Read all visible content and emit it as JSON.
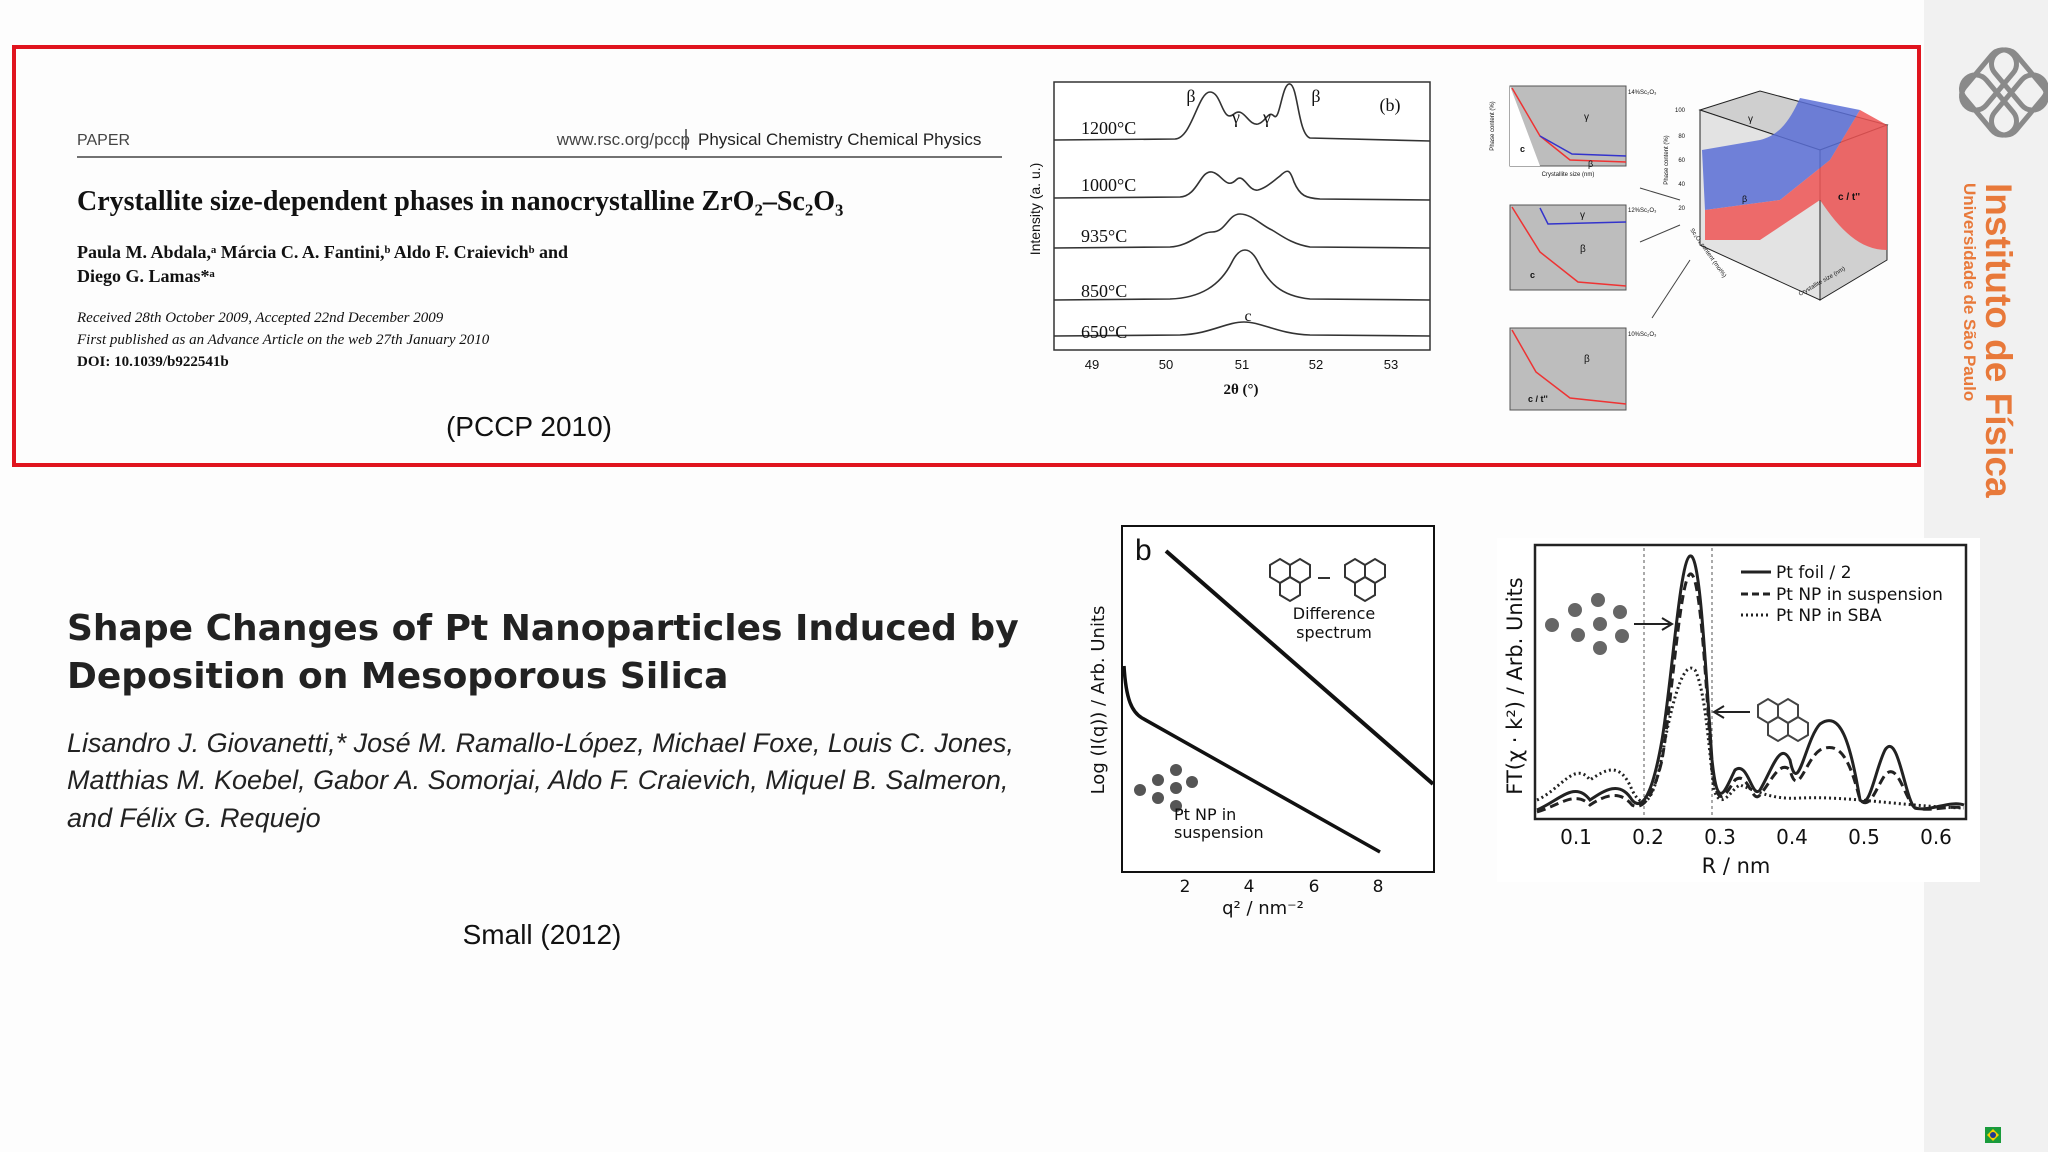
{
  "paper_1": {
    "section": "PAPER",
    "url": "www.rsc.org/pccp",
    "journal": "Physical Chemistry Chemical Physics",
    "title": "Crystallite size-dependent phases in nanocrystalline ZrO₂–Sc₂O₃",
    "authors": [
      "Paula M. Abdala,ᵃ Márcia C. A. Fantini,ᵇ Aldo F. Craievichᵇ and",
      "Diego G. Lamas*ᵃ"
    ],
    "history": [
      "Received 28th October 2009, Accepted 22nd December 2009",
      "First published as an Advance Article on the web 27th January 2010"
    ],
    "doi": "DOI: 10.1039/b922541b",
    "caption": "(PCCP 2010)"
  },
  "xrd_figure": {
    "panel": "(b)",
    "y_label": "Intensity (a. u.)",
    "x_label": "2θ (°)",
    "x_ticks": [
      49,
      50,
      51,
      52,
      53
    ],
    "temperatures": [
      "1200°C",
      "1000°C",
      "935°C",
      "850°C",
      "650°C"
    ],
    "peak_labels": [
      "β",
      "γ",
      "γ",
      "β",
      "c"
    ]
  },
  "phase_figure": {
    "panels": [
      {
        "composition": "14%Sc₂O₃",
        "phases": [
          "γ",
          "c",
          "β"
        ]
      },
      {
        "composition": "12%Sc₂O₃",
        "phases": [
          "γ",
          "β",
          "c"
        ]
      },
      {
        "composition": "10%Sc₂O₃",
        "phases": [
          "β",
          "c / t''"
        ]
      }
    ],
    "x_label": "Crystallite size (nm)",
    "y_label": "Phase content (%)",
    "surface_labels": [
      "γ",
      "β",
      "c / t''"
    ],
    "surface_axes": [
      "Phase content (%)",
      "Sc₂O₃ content (mol%)",
      "Crystallite size (nm)"
    ],
    "surface_ticks": [
      100,
      80,
      60,
      40,
      20
    ]
  },
  "paper_2": {
    "title": [
      "Shape Changes of Pt Nanoparticles Induced by",
      "Deposition on Mesoporous Silica"
    ],
    "authors": [
      "Lisandro J. Giovanetti,* José M. Ramallo-López, Michael Foxe, Louis C. Jones,",
      "Matthias M. Koebel, Gabor A. Somorjai, Aldo F. Craievich, Miquel B. Salmeron,",
      "and Félix G. Requejo"
    ],
    "caption": "Small (2012)"
  },
  "saxs_figure": {
    "panel": "b",
    "y_label": "Log (I(q)) / Arb. Units",
    "x_label": "q² / nm⁻²",
    "x_ticks": [
      2,
      4,
      6,
      8
    ],
    "annotations": [
      [
        "Difference",
        "spectrum"
      ],
      [
        "Pt NP in",
        "suspension"
      ]
    ]
  },
  "exafs_figure": {
    "y_label": "FT(χ · k²) / Arb. Units",
    "x_label": "R / nm",
    "x_ticks": [
      0.1,
      0.2,
      0.3,
      0.4,
      0.5,
      0.6
    ],
    "legend": [
      "Pt foil / 2",
      "Pt NP in suspension",
      "Pt NP in SBA"
    ]
  },
  "sidebar": {
    "institute": "Instituto de Física",
    "university": "Universidade de São Paulo"
  }
}
